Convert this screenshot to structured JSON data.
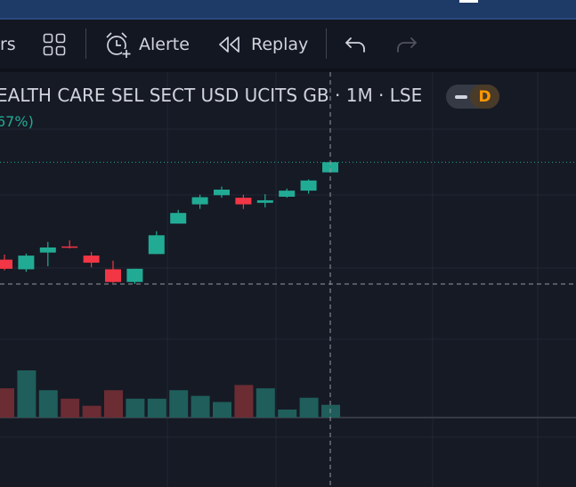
{
  "toolbar": {
    "indicators_fragment": "rs",
    "alert_label": "Alerte",
    "replay_label": "Replay",
    "icons": [
      "layout-grid-icon",
      "alarm-clock-icon",
      "rewind-icon",
      "undo-icon",
      "redo-icon"
    ]
  },
  "legend": {
    "title": "EALTH CARE SEL SECT USD UCITS GB · 1M · LSE",
    "change": "67%)",
    "pill_label": "D"
  },
  "colors": {
    "up": "#22ab94",
    "down": "#f23645",
    "vol_up": "#1f5e5b",
    "vol_down": "#6b2c33",
    "background": "#161a25",
    "toolbar": "#131722",
    "accent_orange": "#ff9800"
  },
  "chart_data": {
    "type": "candlestick",
    "ohlc": [
      {
        "o": 0.48,
        "h": 0.58,
        "l": 0.27,
        "c": 0.3,
        "dir": "down"
      },
      {
        "o": 0.29,
        "h": 0.6,
        "l": 0.24,
        "c": 0.56,
        "dir": "up"
      },
      {
        "o": 0.62,
        "h": 0.83,
        "l": 0.35,
        "c": 0.72,
        "dir": "up"
      },
      {
        "o": 0.74,
        "h": 0.86,
        "l": 0.7,
        "c": 0.74,
        "dir": "down"
      },
      {
        "o": 0.56,
        "h": 0.63,
        "l": 0.33,
        "c": 0.42,
        "dir": "down"
      },
      {
        "o": 0.29,
        "h": 0.46,
        "l": 0.02,
        "c": 0.04,
        "dir": "down"
      },
      {
        "o": 0.04,
        "h": 0.3,
        "l": 0.0,
        "c": 0.3,
        "dir": "up"
      },
      {
        "o": 0.59,
        "h": 1.04,
        "l": 0.59,
        "c": 0.96,
        "dir": "up"
      },
      {
        "o": 1.19,
        "h": 1.46,
        "l": 1.19,
        "c": 1.4,
        "dir": "up"
      },
      {
        "o": 1.57,
        "h": 1.76,
        "l": 1.48,
        "c": 1.71,
        "dir": "up"
      },
      {
        "o": 1.75,
        "h": 1.92,
        "l": 1.7,
        "c": 1.86,
        "dir": "up"
      },
      {
        "o": 1.7,
        "h": 1.76,
        "l": 1.48,
        "c": 1.57,
        "dir": "down"
      },
      {
        "o": 1.6,
        "h": 1.77,
        "l": 1.51,
        "c": 1.65,
        "dir": "up"
      },
      {
        "o": 1.72,
        "h": 1.88,
        "l": 1.7,
        "c": 1.84,
        "dir": "up"
      },
      {
        "o": 1.84,
        "h": 2.06,
        "l": 1.78,
        "c": 2.04,
        "dir": "up"
      },
      {
        "o": 2.2,
        "h": 2.4,
        "l": 2.2,
        "c": 2.4,
        "dir": "up"
      }
    ],
    "volume": [
      {
        "v": 0.62,
        "dir": "down"
      },
      {
        "v": 1.0,
        "dir": "up"
      },
      {
        "v": 0.58,
        "dir": "up"
      },
      {
        "v": 0.4,
        "dir": "down"
      },
      {
        "v": 0.25,
        "dir": "down"
      },
      {
        "v": 0.58,
        "dir": "down"
      },
      {
        "v": 0.4,
        "dir": "up"
      },
      {
        "v": 0.4,
        "dir": "up"
      },
      {
        "v": 0.58,
        "dir": "up"
      },
      {
        "v": 0.46,
        "dir": "up"
      },
      {
        "v": 0.33,
        "dir": "up"
      },
      {
        "v": 0.69,
        "dir": "down"
      },
      {
        "v": 0.62,
        "dir": "up"
      },
      {
        "v": 0.17,
        "dir": "up"
      },
      {
        "v": 0.42,
        "dir": "up"
      },
      {
        "v": 0.27,
        "dir": "up"
      }
    ],
    "last_price": 2.4,
    "crosshair_price": 0.0,
    "grid": true
  }
}
